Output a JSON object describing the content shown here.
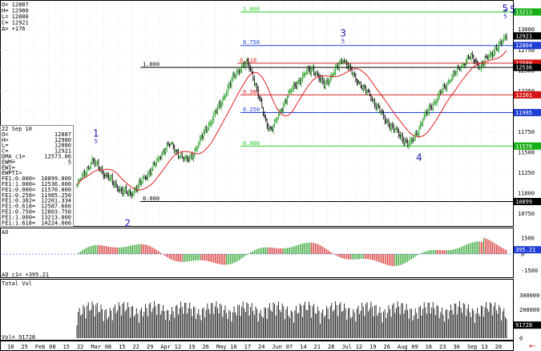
{
  "header": {
    "lines": [
      "O=   12887",
      "H=   12980",
      "L=   12880",
      "C=   12921",
      "Δ=     +176"
    ],
    "corner_wave": "- 5"
  },
  "info_panel": {
    "rows": [
      [
        "22 Sep 10",
        ""
      ],
      [
        "O=",
        "12887"
      ],
      [
        "H=",
        "12980"
      ],
      [
        "L=",
        "12880"
      ],
      [
        "C=",
        "12921"
      ],
      [
        "DMA_c1=",
        "12573.86"
      ],
      [
        "EWM=",
        "5"
      ],
      [
        "EWI=",
        ""
      ],
      [
        "EWPTI=",
        ""
      ],
      [
        "FE1:0.000=",
        "10899.000"
      ],
      [
        "FE1:1.000=",
        "12536.000"
      ],
      [
        "FE1:0.000=",
        "11576.000"
      ],
      [
        "FE1:0.250=",
        "11985.250"
      ],
      [
        "FE1:0.382=",
        "12201.334"
      ],
      [
        "FE1:0.618=",
        "12587.666"
      ],
      [
        "FE1:0.750=",
        "12803.750"
      ],
      [
        "FE1:1.000=",
        "13213.000"
      ],
      [
        "FE1:1.618=",
        "14224.666"
      ]
    ]
  },
  "chart_data": [
    {
      "type": "candlestick",
      "panel": "price",
      "y_ticks": [
        10750,
        11000,
        11250,
        11500,
        11750,
        12000,
        12250,
        12500,
        12750,
        13000
      ],
      "ylim": [
        10620,
        13320
      ],
      "price_boxes": [
        {
          "value": 13213,
          "label": "13213",
          "color": "#16b016"
        },
        {
          "value": 12921,
          "label": "12921",
          "color": "#000000"
        },
        {
          "value": 12804,
          "label": "12804",
          "color": "#1f3fd6"
        },
        {
          "value": 12588,
          "label": "12588",
          "color": "#d41414"
        },
        {
          "value": 12536,
          "label": "12536",
          "color": "#000000"
        },
        {
          "value": 12201,
          "label": "12201",
          "color": "#d41414"
        },
        {
          "value": 11985,
          "label": "11985",
          "color": "#1f3fd6"
        },
        {
          "value": 11576,
          "label": "11576",
          "color": "#16b016"
        },
        {
          "value": 10899,
          "label": "10899",
          "color": "#000000"
        }
      ],
      "fib_lines": [
        {
          "value": 13213,
          "label": "1.000",
          "color": "#22cc22"
        },
        {
          "value": 12804,
          "label": "0.750",
          "color": "#2244dd"
        },
        {
          "value": 12588,
          "label": "0.618",
          "color": "#dd2222"
        },
        {
          "value": 12536,
          "label": "1.000",
          "color": "#000000"
        },
        {
          "value": 12201,
          "label": "0.382",
          "color": "#dd2222"
        },
        {
          "value": 11985,
          "label": "0.250",
          "color": "#2244dd"
        },
        {
          "value": 11576,
          "label": "0.000",
          "color": "#22cc22"
        },
        {
          "value": 10899,
          "label": "0.000",
          "color": "#000000"
        }
      ],
      "closes": [
        11100,
        11180,
        11250,
        11320,
        11400,
        11350,
        11300,
        11250,
        11200,
        11150,
        11100,
        11060,
        11020,
        11000,
        10990,
        11030,
        11080,
        11140,
        11200,
        11260,
        11320,
        11380,
        11460,
        11540,
        11600,
        11580,
        11520,
        11470,
        11430,
        11400,
        11450,
        11520,
        11600,
        11700,
        11790,
        11860,
        11930,
        12030,
        12120,
        12210,
        12300,
        12400,
        12480,
        12530,
        12560,
        12580,
        12470,
        12320,
        12150,
        11980,
        11850,
        11780,
        11850,
        11950,
        12060,
        12150,
        12230,
        12300,
        12350,
        12400,
        12450,
        12500,
        12520,
        12450,
        12380,
        12320,
        12380,
        12430,
        12500,
        12580,
        12640,
        12580,
        12490,
        12420,
        12370,
        12300,
        12250,
        12200,
        12130,
        12050,
        11980,
        11900,
        11850,
        11800,
        11750,
        11700,
        11650,
        11600,
        11620,
        11700,
        11800,
        11900,
        11980,
        12050,
        12110,
        12180,
        12250,
        12320,
        12390,
        12450,
        12500,
        12550,
        12610,
        12660,
        12650,
        12600,
        12550,
        12600,
        12650,
        12700,
        12760,
        12800,
        12850,
        12921
      ],
      "wave_labels": [
        {
          "text": "1",
          "sub": "5",
          "i": 15,
          "pos": "above"
        },
        {
          "text": "2",
          "sub": "",
          "i": 40,
          "pos": "below"
        },
        {
          "text": "3",
          "sub": "5",
          "i": 210,
          "pos": "above"
        },
        {
          "text": "4",
          "sub": "",
          "i": 270,
          "pos": "below"
        },
        {
          "text": "5",
          "sub": "5",
          "i": 338,
          "pos": "above"
        }
      ],
      "x_dates": [
        "18",
        "25",
        "Feb",
        "08",
        "15",
        "22",
        "Mar",
        "08",
        "15",
        "22",
        "29",
        "Apr",
        "12",
        "19",
        "26",
        "May",
        "10",
        "17",
        "24",
        "Jun",
        "07",
        "14",
        "21",
        "28",
        "Jul",
        "12",
        "19",
        "26",
        "Aug",
        "09",
        "16",
        "23",
        "30",
        "Sep",
        "13",
        "20"
      ]
    },
    {
      "type": "bar",
      "panel": "oscillator",
      "title": "AO",
      "readout": "AO_c1= +395.21",
      "y_ticks": [
        -1500,
        0,
        1500
      ],
      "ylim": [
        -2000,
        2000
      ],
      "box": {
        "label": "395.21",
        "color": "#1f3fd6"
      }
    },
    {
      "type": "bar",
      "panel": "volume",
      "title": "Total Vol",
      "readout": "Vol= 91728",
      "y_ticks": [
        0,
        100000,
        200000,
        300000
      ],
      "ylim": [
        0,
        360000
      ],
      "box": {
        "label": "91728",
        "color": "#000000"
      }
    }
  ],
  "colors": {
    "up": "#1a9c1a",
    "down": "#000000",
    "ma": "#e02020",
    "ao_up": "#1a9c1a",
    "ao_down": "#d42020",
    "vol": "#000000"
  }
}
